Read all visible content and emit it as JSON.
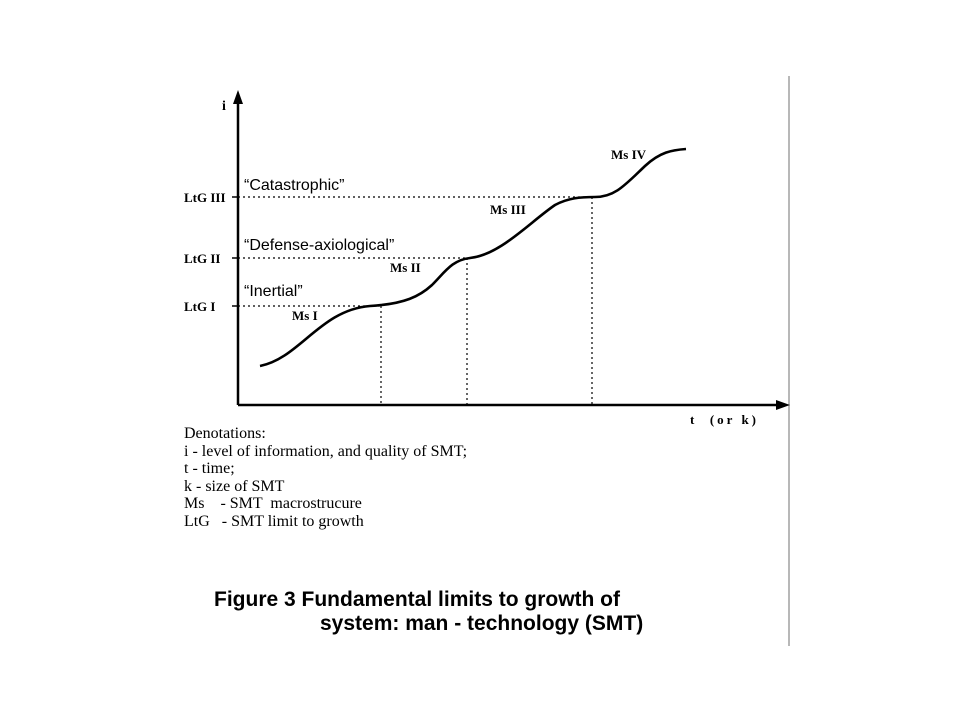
{
  "diagram": {
    "y_axis_label": "i",
    "x_axis_label": "t  (or k)",
    "limits": [
      {
        "label": "LtG I",
        "phase": "“Inertial”"
      },
      {
        "label": "LtG II",
        "phase": "“Defense-axiological”"
      },
      {
        "label": "LtG III",
        "phase": "“Catastrophic”"
      }
    ],
    "macrostructures": [
      "Ms I",
      "Ms II",
      "Ms III",
      "Ms IV"
    ],
    "curve_color": "#000000"
  },
  "denotations": {
    "title": "Denotations:",
    "lines": [
      "i - level of information, and quality of SMT;",
      "t - time;",
      "k - size of SMT",
      "Ms    - SMT  macrostrucure",
      "LtG   - SMT limit to growth"
    ]
  },
  "caption": {
    "line1": "Figure 3 Fundamental limits to growth of",
    "line2": "system: man - technology (SMT)"
  }
}
